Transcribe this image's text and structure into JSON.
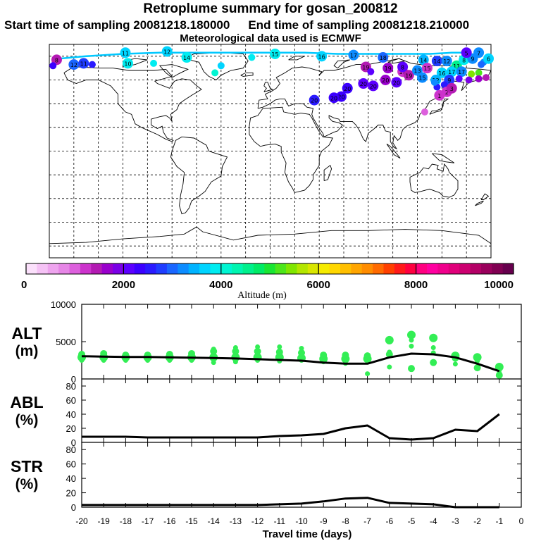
{
  "header": {
    "title": "Retroplume summary for gosan_200812",
    "start_label": "Start time of sampling 20081218.180000",
    "end_label": "End time of sampling 20081218.210000",
    "met_label": "Meteorological data used is ECMWF"
  },
  "colorbar": {
    "label": "Altitude (m)",
    "ticks": [
      "0",
      "2000",
      "4000",
      "6000",
      "8000",
      "10000"
    ],
    "range": [
      0,
      10000
    ],
    "colors": [
      "#fbe0fb",
      "#f5c2f5",
      "#eea4ee",
      "#e686e6",
      "#dd60dd",
      "#cc33cc",
      "#b31ab3",
      "#9900cc",
      "#7a00e6",
      "#5c00ff",
      "#3b00ff",
      "#2a1aff",
      "#1f3dff",
      "#1a66ff",
      "#0d8cff",
      "#00b3ff",
      "#00d4ff",
      "#00ecf0",
      "#00f5d2",
      "#00f5b0",
      "#00f08c",
      "#00eb66",
      "#19e633",
      "#4de61a",
      "#80e600",
      "#b3e600",
      "#d9e600",
      "#f5eb00",
      "#ffd700",
      "#ffbf00",
      "#ffa500",
      "#ff8c00",
      "#ff6a00",
      "#ff4000",
      "#ff1a1a",
      "#ff0040",
      "#ff0080",
      "#ff00a0",
      "#f0008c",
      "#e0007a",
      "#cc0070",
      "#b30066",
      "#99005c",
      "#800052",
      "#66004d"
    ]
  },
  "map": {
    "lat_gridlines": [
      80,
      60,
      40,
      20,
      0,
      -20,
      -40,
      -60,
      -80
    ],
    "lon_gridlines": [
      -160,
      -140,
      -120,
      -100,
      -80,
      -60,
      -40,
      -20,
      0,
      20,
      40,
      60,
      80,
      100,
      120,
      140,
      160
    ],
    "plume_points": [
      {
        "lon": -174,
        "lat": 77,
        "label": "8",
        "alt": 1400
      },
      {
        "lon": -177,
        "lat": 72,
        "label": "",
        "alt": 2300
      },
      {
        "lon": -160,
        "lat": 73,
        "label": "12",
        "alt": 3000
      },
      {
        "lon": -152,
        "lat": 74,
        "label": "11",
        "alt": 2800
      },
      {
        "lon": -145,
        "lat": 73,
        "label": "",
        "alt": 2600
      },
      {
        "lon": -118,
        "lat": 83,
        "label": "11",
        "alt": 3600
      },
      {
        "lon": -116,
        "lat": 74,
        "label": "10",
        "alt": 3800
      },
      {
        "lon": -95,
        "lat": 74,
        "label": "",
        "alt": 3900
      },
      {
        "lon": -84,
        "lat": 84,
        "label": "12",
        "alt": 3600
      },
      {
        "lon": -68,
        "lat": 79,
        "label": "14",
        "alt": 3800
      },
      {
        "lon": -40,
        "lat": 72,
        "label": "",
        "alt": 3700
      },
      {
        "lon": -45,
        "lat": 66,
        "label": "",
        "alt": 4000
      },
      {
        "lon": -15,
        "lat": 79,
        "label": "",
        "alt": 3900
      },
      {
        "lon": 4,
        "lat": 82,
        "label": "15",
        "alt": 3800
      },
      {
        "lon": 42,
        "lat": 80,
        "label": "16",
        "alt": 3700
      },
      {
        "lon": 68,
        "lat": 81,
        "label": "17",
        "alt": 3200
      },
      {
        "lon": 92,
        "lat": 79,
        "label": "18",
        "alt": 3000
      },
      {
        "lon": 96,
        "lat": 70,
        "label": "19",
        "alt": 1600
      },
      {
        "lon": 108,
        "lat": 67,
        "label": "19",
        "alt": 1300
      },
      {
        "lon": 108,
        "lat": 71,
        "label": "8",
        "alt": 2000
      },
      {
        "lon": 113,
        "lat": 64,
        "label": "19",
        "alt": 1500
      },
      {
        "lon": 94,
        "lat": 60,
        "label": "20",
        "alt": 1700
      },
      {
        "lon": 103,
        "lat": 58,
        "label": "20",
        "alt": 2100
      },
      {
        "lon": 76,
        "lat": 57,
        "label": "20",
        "alt": 2000
      },
      {
        "lon": 84,
        "lat": 55,
        "label": "20",
        "alt": 2200
      },
      {
        "lon": 63,
        "lat": 53,
        "label": "20",
        "alt": 2400
      },
      {
        "lon": 58,
        "lat": 46,
        "label": "20",
        "alt": 2400
      },
      {
        "lon": 52,
        "lat": 45,
        "label": "20",
        "alt": 2300
      },
      {
        "lon": 36,
        "lat": 43,
        "label": "20",
        "alt": 2600
      },
      {
        "lon": 78,
        "lat": 71,
        "label": "19",
        "alt": 1400
      },
      {
        "lon": 82,
        "lat": 67,
        "label": "",
        "alt": 2200
      },
      {
        "lon": 125,
        "lat": 77,
        "label": "14",
        "alt": 3500
      },
      {
        "lon": 136,
        "lat": 76,
        "label": "14",
        "alt": 2800
      },
      {
        "lon": 144,
        "lat": 76,
        "label": "12",
        "alt": 3300
      },
      {
        "lon": 152,
        "lat": 72,
        "label": "11",
        "alt": 4600
      },
      {
        "lon": 158,
        "lat": 77,
        "label": "8",
        "alt": 3900
      },
      {
        "lon": 165,
        "lat": 78,
        "label": "9",
        "alt": 3300
      },
      {
        "lon": 170,
        "lat": 83,
        "label": "7",
        "alt": 3200
      },
      {
        "lon": 160,
        "lat": 83,
        "label": "5",
        "alt": 2000
      },
      {
        "lon": 174,
        "lat": 75,
        "label": "",
        "alt": 3200
      },
      {
        "lon": 178,
        "lat": 78,
        "label": "6",
        "alt": 3700
      },
      {
        "lon": 170,
        "lat": 66,
        "label": "",
        "alt": 5300
      },
      {
        "lon": 172,
        "lat": 73,
        "label": "",
        "alt": 3100
      },
      {
        "lon": 120,
        "lat": 68,
        "label": "13",
        "alt": 3200
      },
      {
        "lon": 128,
        "lat": 70,
        "label": "15",
        "alt": 1300
      },
      {
        "lon": 140,
        "lat": 66,
        "label": "16",
        "alt": 3600
      },
      {
        "lon": 148,
        "lat": 67,
        "label": "17",
        "alt": 3600
      },
      {
        "lon": 156,
        "lat": 67,
        "label": "17",
        "alt": 3300
      },
      {
        "lon": 164,
        "lat": 65,
        "label": "",
        "alt": 5400
      },
      {
        "lon": 124,
        "lat": 62,
        "label": "15",
        "alt": 3300
      },
      {
        "lon": 135,
        "lat": 60,
        "label": "12",
        "alt": 3400
      },
      {
        "lon": 146,
        "lat": 60,
        "label": "9",
        "alt": 2800
      },
      {
        "lon": 154,
        "lat": 61,
        "label": "",
        "alt": 2200
      },
      {
        "lon": 162,
        "lat": 60,
        "label": "",
        "alt": 1900
      },
      {
        "lon": 170,
        "lat": 61,
        "label": "",
        "alt": 1600
      },
      {
        "lon": 176,
        "lat": 62,
        "label": "",
        "alt": 1500
      },
      {
        "lon": 136,
        "lat": 54,
        "label": "",
        "alt": 2600
      },
      {
        "lon": 142,
        "lat": 56,
        "label": "",
        "alt": 2600
      },
      {
        "lon": 134,
        "lat": 58,
        "label": "",
        "alt": 3200
      },
      {
        "lon": 144,
        "lat": 50,
        "label": "2",
        "alt": 1200
      },
      {
        "lon": 138,
        "lat": 47,
        "label": "1",
        "alt": 1200
      },
      {
        "lon": 148,
        "lat": 53,
        "label": "3",
        "alt": 1500
      },
      {
        "lon": 126,
        "lat": 33,
        "label": "",
        "alt": 1000
      }
    ],
    "plume_track": [
      {
        "lon": 160,
        "lat": 83
      },
      {
        "lon": 148,
        "lat": 83
      },
      {
        "lon": 130,
        "lat": 82
      },
      {
        "lon": 112,
        "lat": 82
      },
      {
        "lon": 96,
        "lat": 82
      },
      {
        "lon": 75,
        "lat": 82
      },
      {
        "lon": 55,
        "lat": 82
      },
      {
        "lon": 28,
        "lat": 83
      },
      {
        "lon": 5,
        "lat": 83
      },
      {
        "lon": -20,
        "lat": 83
      },
      {
        "lon": -55,
        "lat": 83
      },
      {
        "lon": -90,
        "lat": 83
      },
      {
        "lon": -120,
        "lat": 82
      },
      {
        "lon": -150,
        "lat": 80
      },
      {
        "lon": -172,
        "lat": 78
      }
    ]
  },
  "chart_data": [
    {
      "type": "scatter+line",
      "panel": "ALT",
      "ylabel": "ALT (m)",
      "ylabel_top": "ALT",
      "ylabel_unit": "(m)",
      "ylim": [
        0,
        10000
      ],
      "yticks": [
        "10000",
        "5000",
        "0"
      ],
      "ytick_values": [
        10000,
        5000,
        0
      ],
      "x": [
        -20,
        -19,
        -18,
        -17,
        -16,
        -15,
        -14,
        -13,
        -12,
        -11,
        -10,
        -9,
        -8,
        -7,
        -6,
        -5,
        -4,
        -3,
        -2,
        -1
      ],
      "mean_line": [
        3050,
        3000,
        2950,
        2950,
        2900,
        2850,
        2800,
        2750,
        2650,
        2550,
        2450,
        2200,
        2050,
        2050,
        2900,
        3400,
        3300,
        2900,
        2050,
        1050
      ],
      "percentile_points": [
        {
          "x": -20,
          "values": [
            2900,
            3300,
            2500
          ]
        },
        {
          "x": -19,
          "values": [
            2900,
            3400,
            2500
          ]
        },
        {
          "x": -18,
          "values": [
            2900,
            3200,
            2500
          ]
        },
        {
          "x": -17,
          "values": [
            2900,
            3200,
            2500
          ]
        },
        {
          "x": -16,
          "values": [
            2900,
            3300,
            2500
          ]
        },
        {
          "x": -15,
          "values": [
            2900,
            3400,
            2500
          ]
        },
        {
          "x": -14,
          "values": [
            2900,
            3700,
            2200,
            4000
          ]
        },
        {
          "x": -13,
          "values": [
            2900,
            3700,
            2300,
            4200
          ]
        },
        {
          "x": -12,
          "values": [
            2900,
            3700,
            2500,
            4300
          ]
        },
        {
          "x": -11,
          "values": [
            2900,
            3600,
            2400,
            4300
          ]
        },
        {
          "x": -10,
          "values": [
            2800,
            3500,
            2500,
            4100
          ]
        },
        {
          "x": -9,
          "values": [
            2700,
            3200,
            2300
          ]
        },
        {
          "x": -8,
          "values": [
            2700,
            3200,
            2100
          ]
        },
        {
          "x": -7,
          "values": [
            2700,
            3100,
            700
          ]
        },
        {
          "x": -6,
          "values": [
            5200,
            3300,
            1600,
            3600
          ]
        },
        {
          "x": -5,
          "values": [
            5900,
            1400,
            4400,
            5200
          ]
        },
        {
          "x": -4,
          "values": [
            5500,
            2200,
            4200,
            3500
          ]
        },
        {
          "x": -3,
          "values": [
            3100,
            2800,
            2000
          ]
        },
        {
          "x": -2,
          "values": [
            2900,
            1500,
            2400
          ]
        },
        {
          "x": -1,
          "values": [
            1600,
            500,
            1200,
            800
          ]
        }
      ],
      "point_color": "#33ee55"
    },
    {
      "type": "line",
      "panel": "ABL",
      "ylabel": "ABL (%)",
      "ylabel_top": "ABL",
      "ylabel_unit": "(%)",
      "ylim": [
        0,
        90
      ],
      "yticks": [
        "80",
        "60",
        "40",
        "20",
        "0"
      ],
      "ytick_values": [
        80,
        60,
        40,
        20,
        0
      ],
      "x": [
        -20,
        -19,
        -18,
        -17,
        -16,
        -15,
        -14,
        -13,
        -12,
        -11,
        -10,
        -9,
        -8,
        -7,
        -6,
        -5,
        -4,
        -3,
        -2,
        -1
      ],
      "values": [
        8,
        8,
        8,
        7,
        7,
        7,
        7,
        7,
        7,
        9,
        10,
        12,
        20,
        24,
        6,
        4,
        6,
        18,
        16,
        40
      ]
    },
    {
      "type": "line",
      "panel": "STR",
      "ylabel": "STR (%)",
      "ylabel_top": "STR",
      "ylabel_unit": "(%)",
      "ylim": [
        0,
        90
      ],
      "yticks": [
        "80",
        "60",
        "40",
        "20",
        "0"
      ],
      "ytick_values": [
        80,
        60,
        40,
        20,
        0
      ],
      "x": [
        -20,
        -19,
        -18,
        -17,
        -16,
        -15,
        -14,
        -13,
        -12,
        -11,
        -10,
        -9,
        -8,
        -7,
        -6,
        -5,
        -4,
        -3,
        -2,
        -1
      ],
      "values": [
        3,
        3,
        3,
        3,
        3,
        3,
        3,
        3,
        3,
        4,
        5,
        8,
        12,
        13,
        6,
        5,
        4,
        0,
        0,
        0
      ]
    }
  ],
  "xaxis": {
    "label": "Travel time (days)",
    "ticks": [
      "-20",
      "-19",
      "-18",
      "-17",
      "-16",
      "-15",
      "-14",
      "-13",
      "-12",
      "-11",
      "-10",
      "-9",
      "-8",
      "-7",
      "-6",
      "-5",
      "-4",
      "-3",
      "-2",
      "-1",
      "0"
    ],
    "tick_values": [
      -20,
      -19,
      -18,
      -17,
      -16,
      -15,
      -14,
      -13,
      -12,
      -11,
      -10,
      -9,
      -8,
      -7,
      -6,
      -5,
      -4,
      -3,
      -2,
      -1,
      0
    ]
  }
}
